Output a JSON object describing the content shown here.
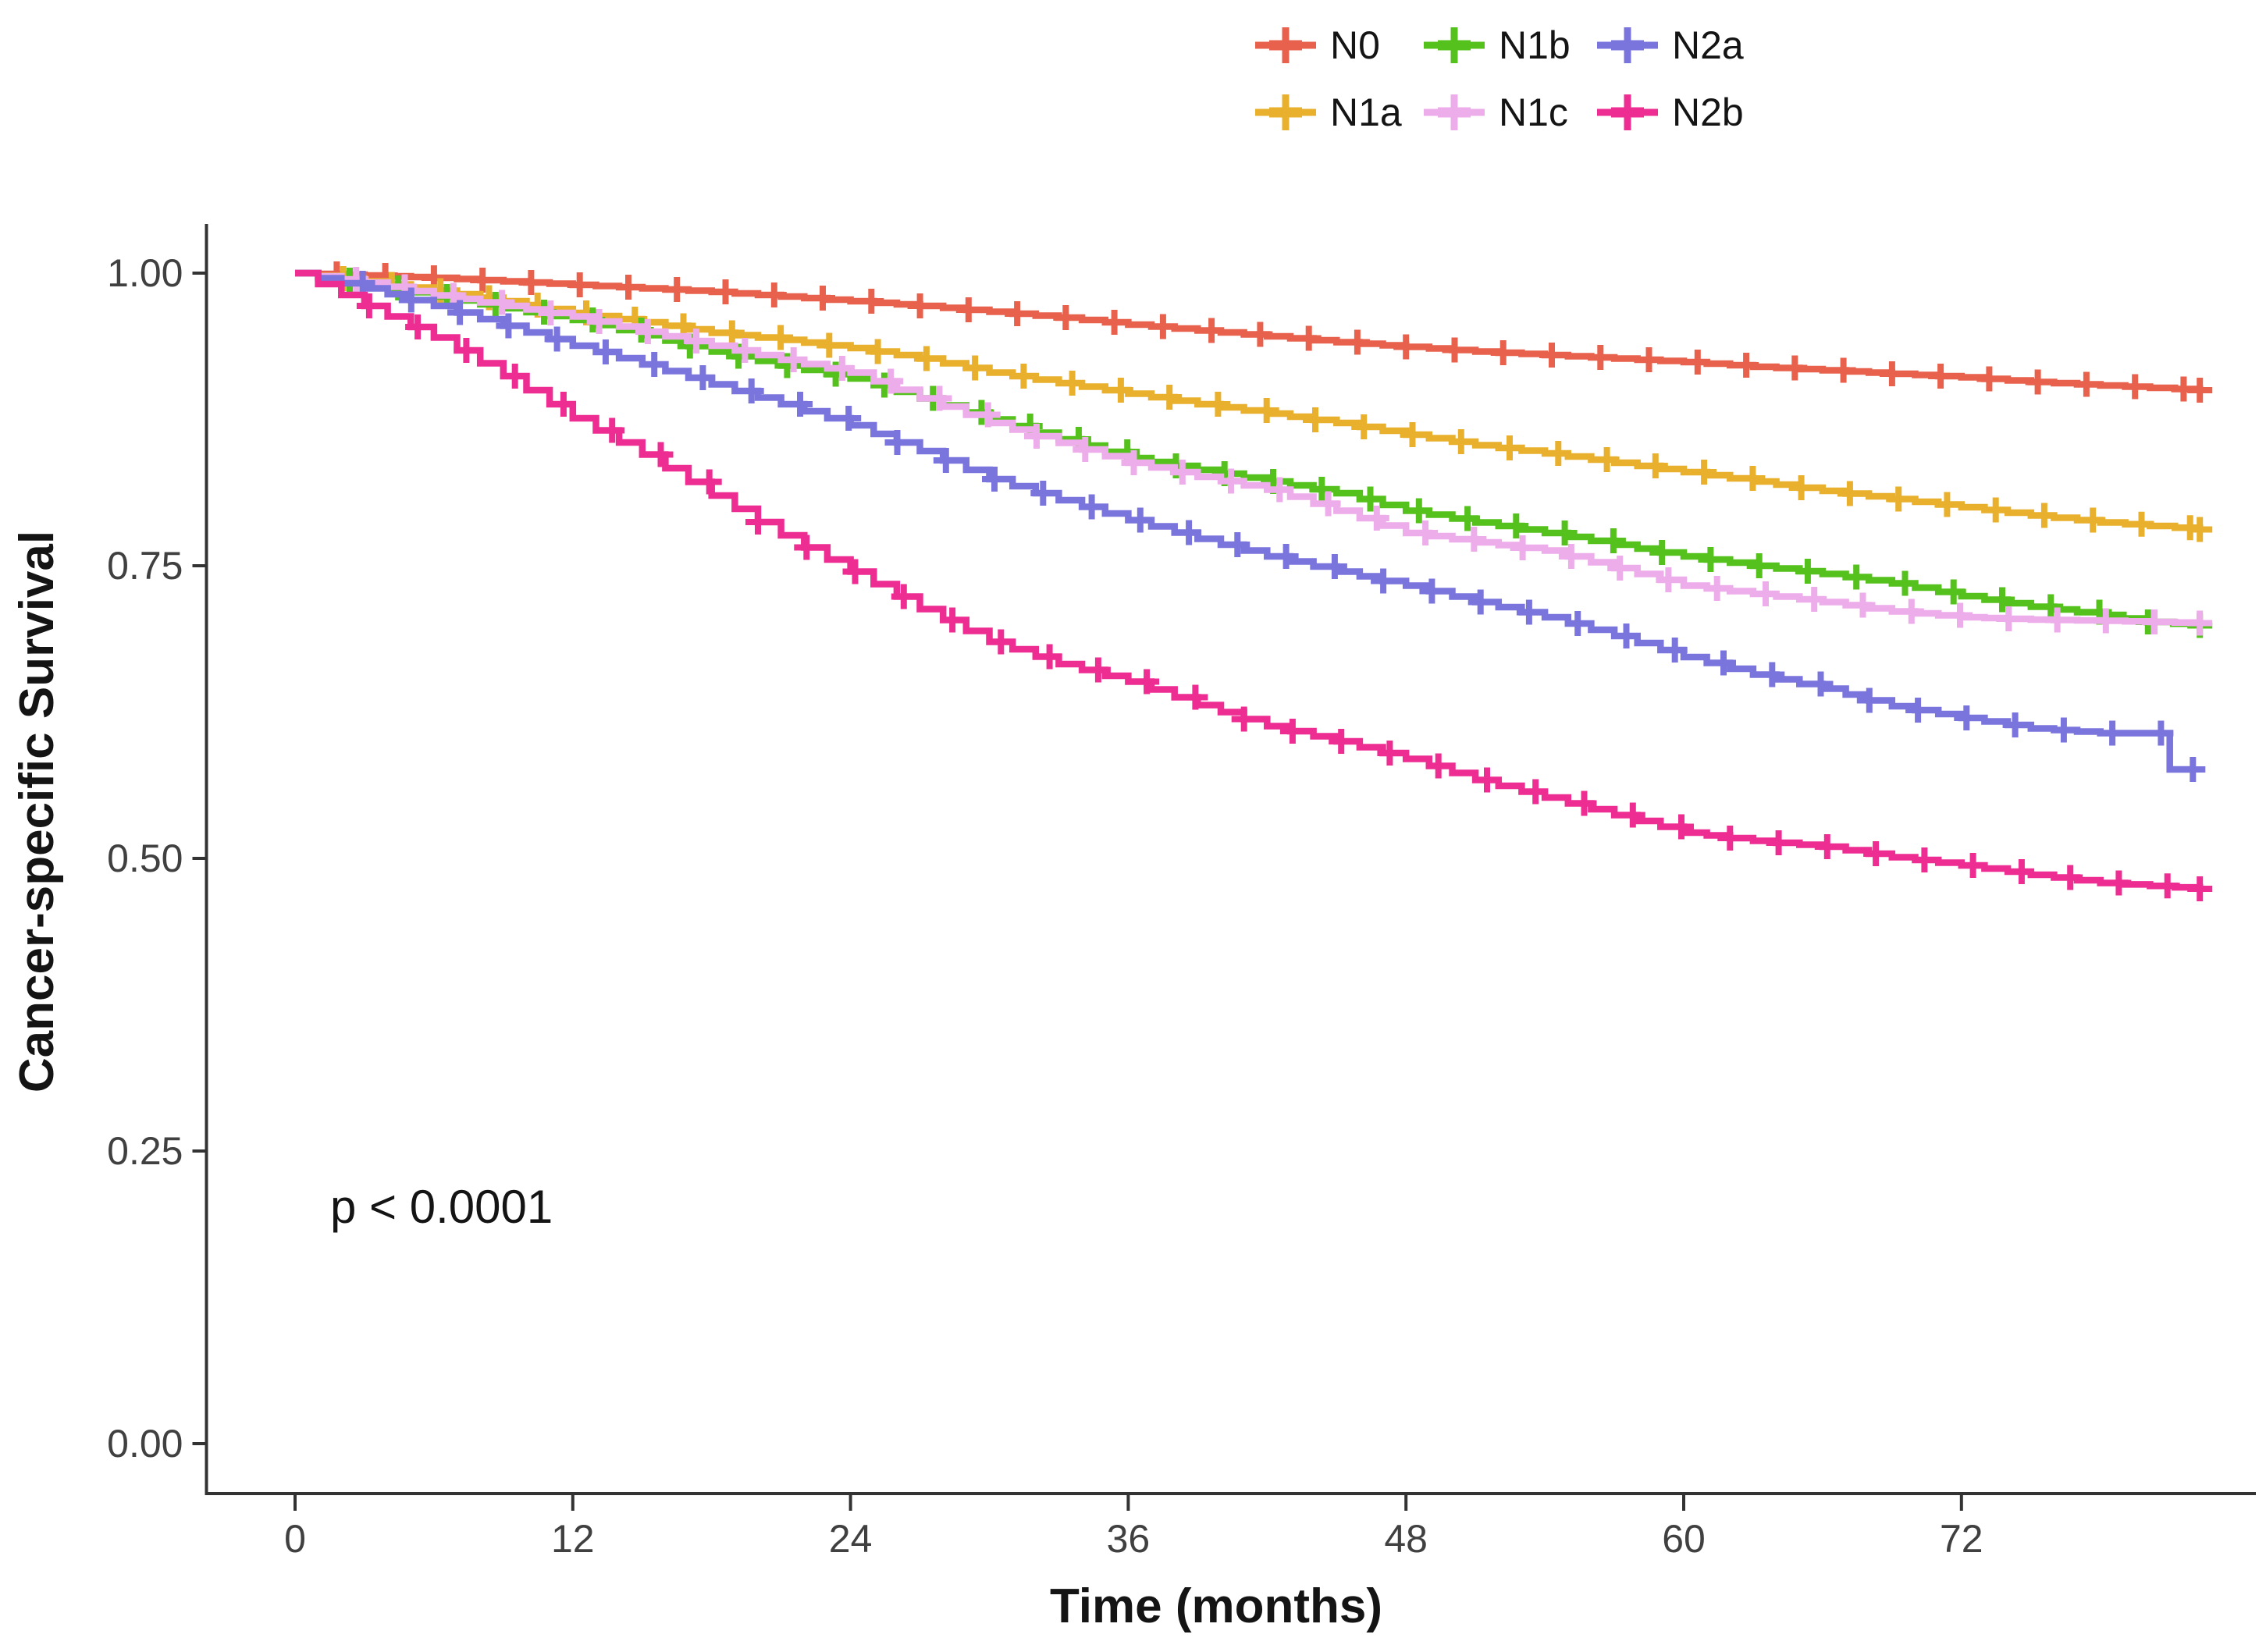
{
  "chart_data": {
    "type": "line",
    "subtype": "kaplan-meier-step",
    "title": "",
    "xlabel": "Time (months)",
    "ylabel": "Cancer-specific Survival",
    "annotation": "p < 0.0001",
    "xlim": [
      0,
      84.8
    ],
    "ylim": [
      0,
      1.05
    ],
    "grid": false,
    "legend_position": "top-center, 2 rows",
    "x_ticks": [
      {
        "v": 0,
        "label": "0"
      },
      {
        "v": 12,
        "label": "12"
      },
      {
        "v": 24,
        "label": "24"
      },
      {
        "v": 36,
        "label": "36"
      },
      {
        "v": 48,
        "label": "48"
      },
      {
        "v": 60,
        "label": "60"
      },
      {
        "v": 72,
        "label": "72"
      }
    ],
    "y_ticks": [
      {
        "v": 1.0,
        "label": "1.00"
      },
      {
        "v": 0.75,
        "label": "0.75"
      },
      {
        "v": 0.5,
        "label": "0.50"
      },
      {
        "v": 0.25,
        "label": "0.25"
      },
      {
        "v": 0.0,
        "label": "0.00"
      }
    ],
    "legend_rows": [
      [
        "N0",
        "N1b",
        "N2a"
      ],
      [
        "N1a",
        "N1c",
        "N2b"
      ]
    ],
    "censor_mark": "plus",
    "series": [
      {
        "name": "N0",
        "color": "#E8614D",
        "points": [
          [
            0,
            1
          ],
          [
            3,
            0.998
          ],
          [
            6,
            0.996
          ],
          [
            9,
            0.993
          ],
          [
            12,
            0.99
          ],
          [
            15,
            0.987
          ],
          [
            18,
            0.984
          ],
          [
            21,
            0.98
          ],
          [
            24,
            0.976
          ],
          [
            27,
            0.972
          ],
          [
            30,
            0.967
          ],
          [
            33,
            0.962
          ],
          [
            36,
            0.956
          ],
          [
            39,
            0.951
          ],
          [
            42,
            0.946
          ],
          [
            45,
            0.941
          ],
          [
            48,
            0.937
          ],
          [
            51,
            0.933
          ],
          [
            54,
            0.93
          ],
          [
            57,
            0.927
          ],
          [
            60,
            0.924
          ],
          [
            63,
            0.92
          ],
          [
            66,
            0.917
          ],
          [
            69,
            0.914
          ],
          [
            72,
            0.911
          ],
          [
            75,
            0.907
          ],
          [
            78,
            0.904
          ],
          [
            82.3,
            0.9
          ]
        ]
      },
      {
        "name": "N1a",
        "color": "#E8B02D",
        "points": [
          [
            0,
            1
          ],
          [
            3,
            0.993
          ],
          [
            6,
            0.985
          ],
          [
            9,
            0.976
          ],
          [
            12,
            0.966
          ],
          [
            15,
            0.958
          ],
          [
            18,
            0.949
          ],
          [
            21,
            0.943
          ],
          [
            24,
            0.936
          ],
          [
            27,
            0.927
          ],
          [
            30,
            0.915
          ],
          [
            33,
            0.906
          ],
          [
            36,
            0.897
          ],
          [
            39,
            0.888
          ],
          [
            42,
            0.88
          ],
          [
            45,
            0.872
          ],
          [
            48,
            0.862
          ],
          [
            51,
            0.853
          ],
          [
            54,
            0.846
          ],
          [
            57,
            0.838
          ],
          [
            60,
            0.83
          ],
          [
            63,
            0.822
          ],
          [
            66,
            0.814
          ],
          [
            69,
            0.807
          ],
          [
            72,
            0.8
          ],
          [
            75,
            0.793
          ],
          [
            78,
            0.787
          ],
          [
            82.3,
            0.781
          ]
        ]
      },
      {
        "name": "N1b",
        "color": "#55C11D",
        "points": [
          [
            0,
            1
          ],
          [
            3,
            0.991
          ],
          [
            6,
            0.98
          ],
          [
            9,
            0.97
          ],
          [
            12,
            0.96
          ],
          [
            15,
            0.947
          ],
          [
            18,
            0.933
          ],
          [
            21,
            0.921
          ],
          [
            24,
            0.91
          ],
          [
            27,
            0.893
          ],
          [
            30,
            0.875
          ],
          [
            33,
            0.858
          ],
          [
            36,
            0.842
          ],
          [
            39,
            0.832
          ],
          [
            42,
            0.822
          ],
          [
            45,
            0.812
          ],
          [
            48,
            0.797
          ],
          [
            51,
            0.787
          ],
          [
            54,
            0.778
          ],
          [
            57,
            0.768
          ],
          [
            60,
            0.758
          ],
          [
            63,
            0.75
          ],
          [
            66,
            0.743
          ],
          [
            69,
            0.735
          ],
          [
            72,
            0.724
          ],
          [
            75,
            0.715
          ],
          [
            78,
            0.708
          ],
          [
            80,
            0.702
          ],
          [
            82.3,
            0.699
          ]
        ]
      },
      {
        "name": "N1c",
        "color": "#EDACEA",
        "points": [
          [
            0,
            1
          ],
          [
            3,
            0.992
          ],
          [
            6,
            0.981
          ],
          [
            9,
            0.972
          ],
          [
            12,
            0.963
          ],
          [
            15,
            0.95
          ],
          [
            18,
            0.938
          ],
          [
            21,
            0.926
          ],
          [
            24,
            0.915
          ],
          [
            27,
            0.893
          ],
          [
            30,
            0.872
          ],
          [
            33,
            0.855
          ],
          [
            36,
            0.838
          ],
          [
            39,
            0.826
          ],
          [
            42,
            0.815
          ],
          [
            45,
            0.797
          ],
          [
            48,
            0.778
          ],
          [
            51,
            0.77
          ],
          [
            54,
            0.763
          ],
          [
            57,
            0.748
          ],
          [
            60,
            0.733
          ],
          [
            63,
            0.726
          ],
          [
            66,
            0.719
          ],
          [
            69,
            0.711
          ],
          [
            72,
            0.706
          ],
          [
            75,
            0.704
          ],
          [
            78,
            0.703
          ],
          [
            82.3,
            0.701
          ]
        ]
      },
      {
        "name": "N2a",
        "color": "#7A75DC",
        "points": [
          [
            0,
            1
          ],
          [
            3,
            0.987
          ],
          [
            6,
            0.972
          ],
          [
            9,
            0.955
          ],
          [
            12,
            0.938
          ],
          [
            15,
            0.922
          ],
          [
            18,
            0.905
          ],
          [
            21,
            0.888
          ],
          [
            24,
            0.87
          ],
          [
            27,
            0.848
          ],
          [
            30,
            0.824
          ],
          [
            33,
            0.806
          ],
          [
            36,
            0.789
          ],
          [
            39,
            0.773
          ],
          [
            42,
            0.758
          ],
          [
            45,
            0.745
          ],
          [
            48,
            0.733
          ],
          [
            51,
            0.719
          ],
          [
            54,
            0.706
          ],
          [
            57,
            0.69
          ],
          [
            60,
            0.672
          ],
          [
            63,
            0.657
          ],
          [
            66,
            0.645
          ],
          [
            69,
            0.63
          ],
          [
            72,
            0.62
          ],
          [
            75,
            0.611
          ],
          [
            78,
            0.607
          ],
          [
            80.5,
            0.607
          ],
          [
            81,
            0.576
          ],
          [
            82,
            0.576
          ]
        ]
      },
      {
        "name": "N2b",
        "color": "#EE2D92",
        "points": [
          [
            0,
            1
          ],
          [
            3,
            0.972
          ],
          [
            6,
            0.945
          ],
          [
            9,
            0.912
          ],
          [
            12,
            0.876
          ],
          [
            15,
            0.845
          ],
          [
            18,
            0.81
          ],
          [
            21,
            0.776
          ],
          [
            24,
            0.745
          ],
          [
            27,
            0.713
          ],
          [
            30,
            0.685
          ],
          [
            33,
            0.666
          ],
          [
            36,
            0.651
          ],
          [
            39,
            0.631
          ],
          [
            42,
            0.613
          ],
          [
            45,
            0.6
          ],
          [
            48,
            0.585
          ],
          [
            51,
            0.567
          ],
          [
            54,
            0.552
          ],
          [
            57,
            0.537
          ],
          [
            60,
            0.522
          ],
          [
            63,
            0.515
          ],
          [
            66,
            0.51
          ],
          [
            69,
            0.501
          ],
          [
            72,
            0.494
          ],
          [
            75,
            0.486
          ],
          [
            78,
            0.479
          ],
          [
            82.3,
            0.474
          ]
        ]
      }
    ]
  }
}
